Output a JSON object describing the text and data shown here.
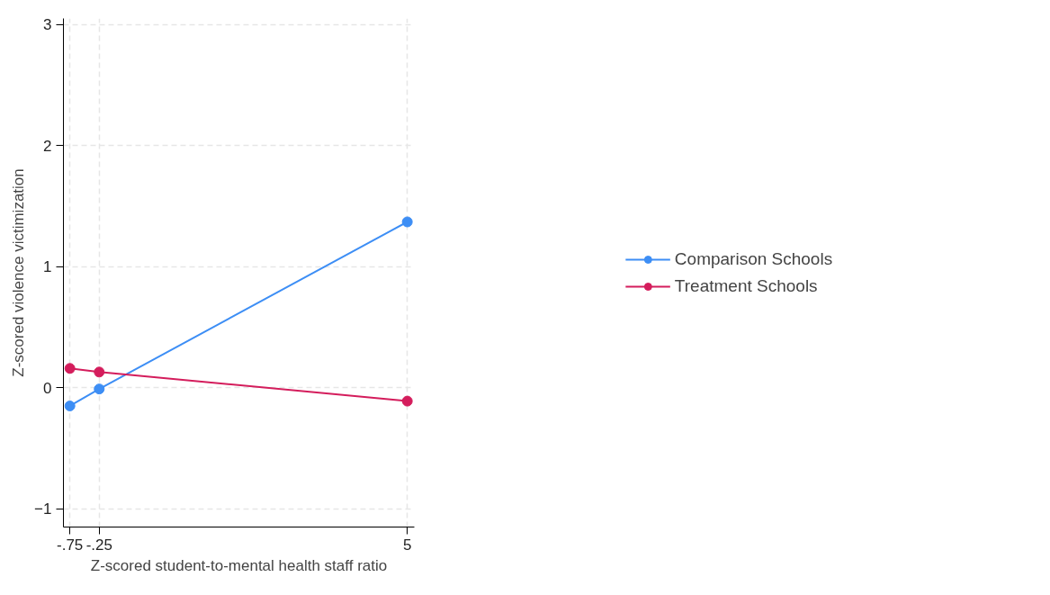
{
  "chart_data": {
    "type": "line",
    "xlabel": "Z-scored student-to-mental health staff ratio",
    "ylabel": "Z-scored violence victimization",
    "x": [
      -0.75,
      -0.25,
      5
    ],
    "series": [
      {
        "name": "Comparison Schools",
        "color": "#3d8ef5",
        "values": [
          -0.15,
          -0.01,
          1.37
        ]
      },
      {
        "name": "Treatment Schools",
        "color": "#d41d5c",
        "values": [
          0.16,
          0.13,
          -0.11
        ]
      }
    ],
    "xlim": [
      -0.86,
      5.12
    ],
    "xticks": [
      {
        "value": -0.75,
        "label": "-.75"
      },
      {
        "value": -0.25,
        "label": "-.25"
      },
      5
    ],
    "ylim": [
      -1.15,
      3.05
    ],
    "yticks": [
      -1,
      0,
      1,
      2,
      3
    ],
    "grid": true,
    "legend": "right",
    "marker": "circle",
    "line_style": "solid"
  }
}
